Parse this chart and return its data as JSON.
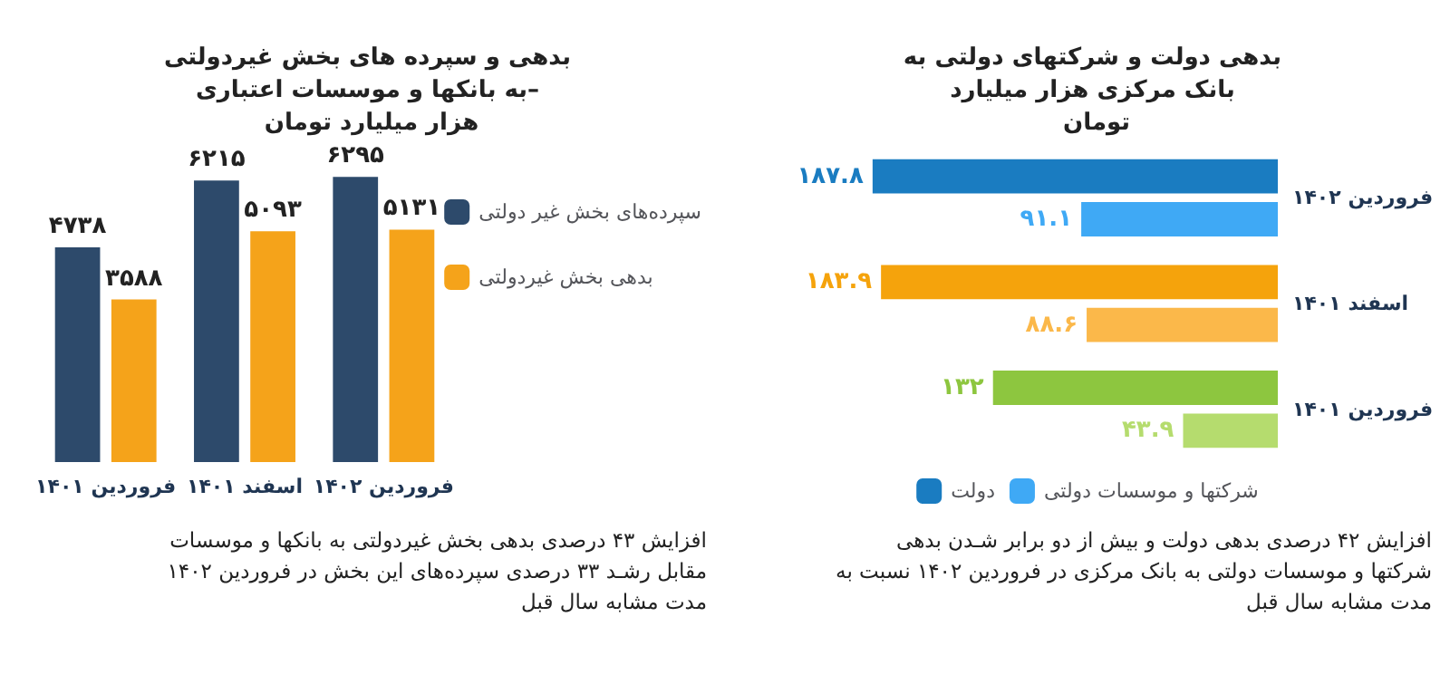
{
  "chart_data": [
    {
      "type": "bar",
      "title": "بدهی و سپرده های بخش غیردولتی به بانکها و موسسات اعتباری– هزار میلیارد تومان",
      "categories": [
        "فروردین ۱۴۰۱",
        "اسفند ۱۴۰۱",
        "فروردین ۱۴۰۲"
      ],
      "series": [
        {
          "name": "سپرده‌های بخش غیر دولتی",
          "color": "#2d4a6b",
          "values": [
            4738,
            6215,
            6295
          ],
          "value_labels": [
            "۴۷۳۸",
            "۶۲۱۵",
            "۶۲۹۵"
          ]
        },
        {
          "name": "بدهی بخش غیردولتی",
          "color": "#f5a31a",
          "values": [
            3588,
            5093,
            5131
          ],
          "value_labels": [
            "۳۵۸۸",
            "۵۰۹۳",
            "۵۱۳۱"
          ]
        }
      ],
      "legend": "right",
      "annotations": [
        "افزایش ۴۳ درصدی بدهی بخش غیردولتی به بانکها و موسسات",
        "مقابل رشـد ۳۳ درصدی سپرده‌های این بخش در فروردین ۱۴۰۲",
        "مدت مشابه سال قبل"
      ]
    },
    {
      "type": "bar",
      "orientation": "horizontal",
      "title": "بدهی دولت و شرکتهای دولتی به بانک مرکزی هزار میلیارد تومان",
      "categories": [
        "فروردین ۱۴۰۲",
        "اسفند ۱۴۰۱",
        "فروردین ۱۴۰۱"
      ],
      "series": [
        {
          "name": "دولت",
          "color": "#1a7cc1",
          "colors": [
            "#1a7cc1",
            "#f5a30c",
            "#8dc63f"
          ],
          "values": [
            187.8,
            183.9,
            132
          ],
          "value_labels": [
            "۱۸۷.۸",
            "۱۸۳.۹",
            "۱۳۲"
          ]
        },
        {
          "name": "شرکتها و موسسات دولتی",
          "color": "#3fa9f5",
          "colors": [
            "#3fa9f5",
            "#fbb84a",
            "#b5dc6e"
          ],
          "values": [
            91.1,
            88.6,
            43.9
          ],
          "value_labels": [
            "۹۱.۱",
            "۸۸.۶",
            "۴۳.۹"
          ]
        }
      ],
      "legend": "bottom",
      "annotations": [
        "افزایش ۴۲ درصدی بدهی دولت و بیش از دو برابر شـدن بدهی",
        "شرکتها و موسسات دولتی به بانک مرکزی در فروردین ۱۴۰۲ نسبت به",
        "مدت مشابه سال قبل"
      ]
    }
  ]
}
